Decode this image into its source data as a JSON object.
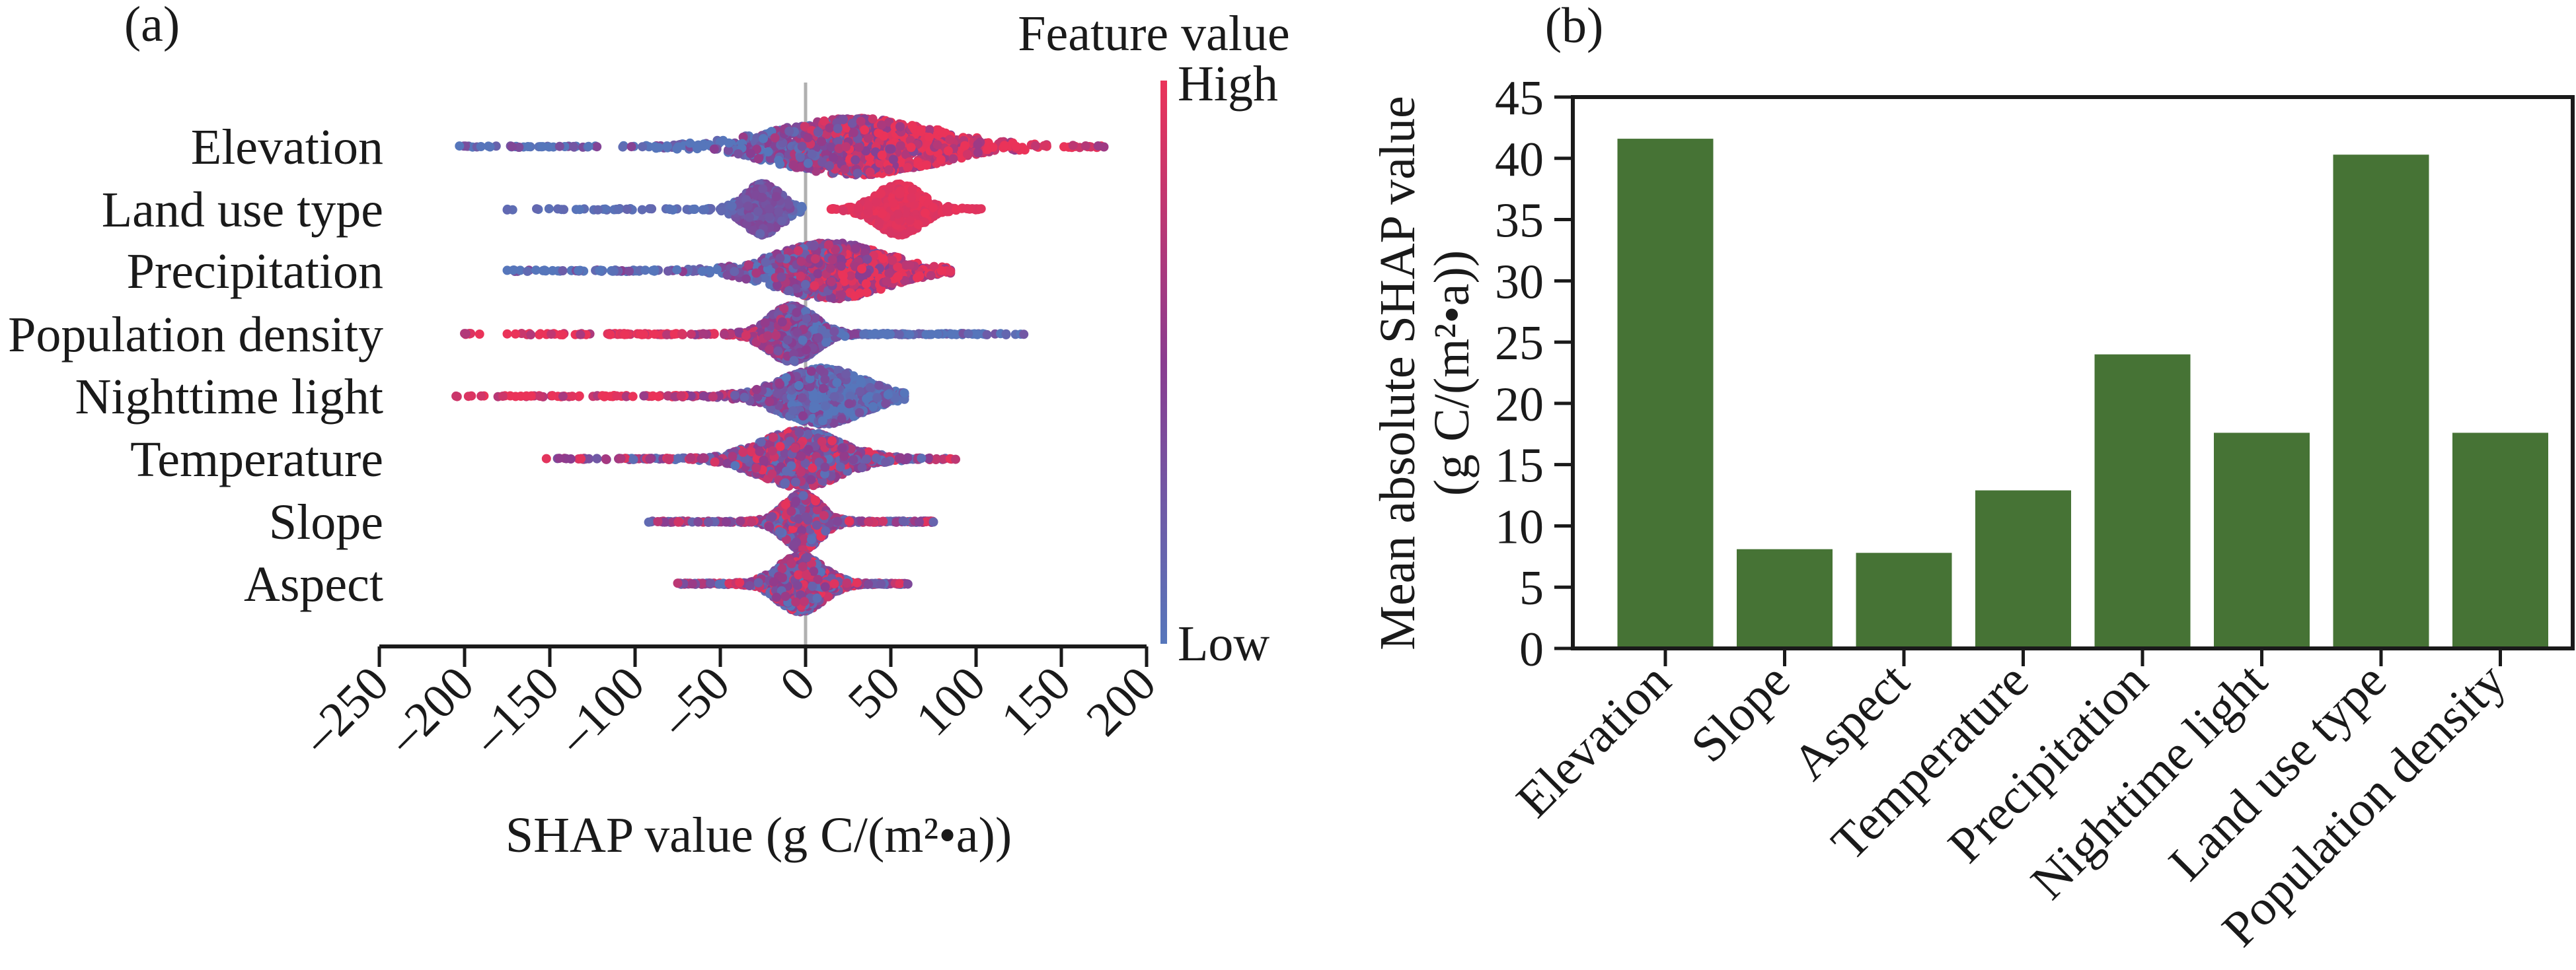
{
  "chart_data": [
    {
      "type": "scatter",
      "panel_label": "(a)",
      "subtype": "beeswarm",
      "xlabel": "SHAP value (g C/(m²•a))",
      "xlim": [
        -250,
        200
      ],
      "xticks": [
        "–250",
        "–200",
        "–150",
        "–100",
        "–50",
        "0",
        "50",
        "100",
        "150",
        "200"
      ],
      "xtick_values": [
        -250,
        -200,
        -150,
        -100,
        -50,
        0,
        50,
        100,
        150,
        200
      ],
      "reference_line": 0,
      "colorbar": {
        "title": "Feature value",
        "high_label": "High",
        "low_label": "Low",
        "high_color": "#ea3359",
        "low_color": "#5676bb"
      },
      "features": [
        {
          "name": "Elevation",
          "min": -203,
          "max": 175,
          "clusters": [
            {
              "mode": 30,
              "spread": 35,
              "min": -203,
              "max": 175,
              "weight": 1,
              "color_trend": "positive",
              "pivot": 10
            }
          ]
        },
        {
          "name": "Land use type",
          "min": -175,
          "max": 103,
          "clusters": [
            {
              "mode": -25,
              "spread": 8,
              "min": -175,
              "max": -2,
              "weight": 0.5,
              "color_trend": "low"
            },
            {
              "mode": 55,
              "spread": 10,
              "min": 15,
              "max": 103,
              "weight": 0.5,
              "color_trend": "high"
            }
          ]
        },
        {
          "name": "Precipitation",
          "min": -175,
          "max": 85,
          "clusters": [
            {
              "mode": 15,
              "spread": 24,
              "min": -175,
              "max": 85,
              "weight": 1,
              "color_trend": "positive",
              "pivot": 0
            }
          ]
        },
        {
          "name": "Population density",
          "min": -200,
          "max": 128,
          "clusters": [
            {
              "mode": -8,
              "spread": 10,
              "min": -200,
              "max": 128,
              "weight": 1,
              "color_trend": "negative",
              "pivot": -20
            }
          ]
        },
        {
          "name": "Nighttime light",
          "min": -205,
          "max": 58,
          "clusters": [
            {
              "mode": 10,
              "spread": 18,
              "min": -205,
              "max": 58,
              "weight": 1,
              "color_trend": "negative",
              "pivot": -40
            }
          ]
        },
        {
          "name": "Temperature",
          "min": -152,
          "max": 88,
          "clusters": [
            {
              "mode": -3,
              "spread": 18,
              "min": -152,
              "max": 88,
              "weight": 1,
              "color_trend": "mixed"
            }
          ]
        },
        {
          "name": "Slope",
          "min": -92,
          "max": 75,
          "clusters": [
            {
              "mode": -2,
              "spread": 8,
              "min": -92,
              "max": 75,
              "weight": 1,
              "color_trend": "mixed"
            }
          ]
        },
        {
          "name": "Aspect",
          "min": -75,
          "max": 60,
          "clusters": [
            {
              "mode": -3,
              "spread": 10,
              "min": -75,
              "max": 60,
              "weight": 1,
              "color_trend": "mixed"
            }
          ]
        }
      ]
    },
    {
      "type": "bar",
      "panel_label": "(b)",
      "ylabel_line1": "Mean absolute SHAP value",
      "ylabel_line2": "(g C/(m²•a))",
      "ylim": [
        0,
        45
      ],
      "yticks": [
        0,
        5,
        10,
        15,
        20,
        25,
        30,
        35,
        40,
        45
      ],
      "categories": [
        "Elevation",
        "Slope",
        "Aspect",
        "Temperature",
        "Precipitation",
        "Nighttime light",
        "Land use type",
        "Population density"
      ],
      "values": [
        41.6,
        8.1,
        7.8,
        12.9,
        24.0,
        17.6,
        40.3,
        17.6
      ],
      "bar_color": "#467335",
      "grid": false
    }
  ]
}
